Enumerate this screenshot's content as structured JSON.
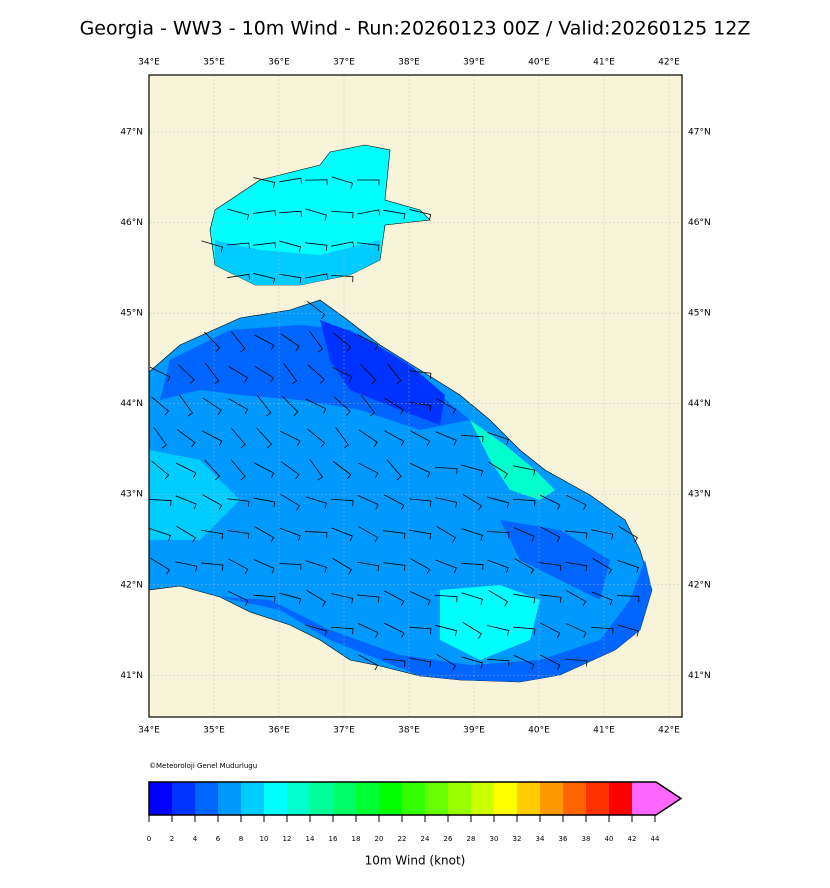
{
  "title": "Georgia - WW3 - 10m Wind - Run:20260123 00Z / Valid:20260125 12Z",
  "map": {
    "xlim": [
      34,
      42.2
    ],
    "ylim": [
      40.54,
      47.63
    ],
    "lon_ticks": [
      {
        "value": 34,
        "label": "34°E"
      },
      {
        "value": 35,
        "label": "35°E"
      },
      {
        "value": 36,
        "label": "36°E"
      },
      {
        "value": 37,
        "label": "37°E"
      },
      {
        "value": 38,
        "label": "38°E"
      },
      {
        "value": 39,
        "label": "39°E"
      },
      {
        "value": 40,
        "label": "40°E"
      },
      {
        "value": 41,
        "label": "41°E"
      },
      {
        "value": 42,
        "label": "42°E"
      }
    ],
    "lat_ticks": [
      {
        "value": 41,
        "label": "41°N"
      },
      {
        "value": 42,
        "label": "42°N"
      },
      {
        "value": 43,
        "label": "43°N"
      },
      {
        "value": 44,
        "label": "44°N"
      },
      {
        "value": 45,
        "label": "45°N"
      },
      {
        "value": 46,
        "label": "46°N"
      },
      {
        "value": 47,
        "label": "47°N"
      }
    ],
    "grid": true
  },
  "credit": "©Meteoroloji Genel Mudurlugu",
  "colorbar": {
    "label": "10m Wind (knot)",
    "levels": [
      0,
      2,
      4,
      6,
      8,
      10,
      12,
      14,
      16,
      18,
      20,
      22,
      24,
      26,
      28,
      30,
      32,
      34,
      36,
      38,
      40,
      42,
      44
    ],
    "colors": [
      "#0000ff",
      "#0033ff",
      "#0066ff",
      "#0099ff",
      "#00ccff",
      "#00ffff",
      "#00ffcc",
      "#00ff99",
      "#00ff66",
      "#00ff33",
      "#00ff00",
      "#33ff00",
      "#66ff00",
      "#99ff00",
      "#ccff00",
      "#ffff00",
      "#ffcc00",
      "#ff9900",
      "#ff6600",
      "#ff3300",
      "#ff0000"
    ],
    "extend_color": "#ff66ff"
  }
}
